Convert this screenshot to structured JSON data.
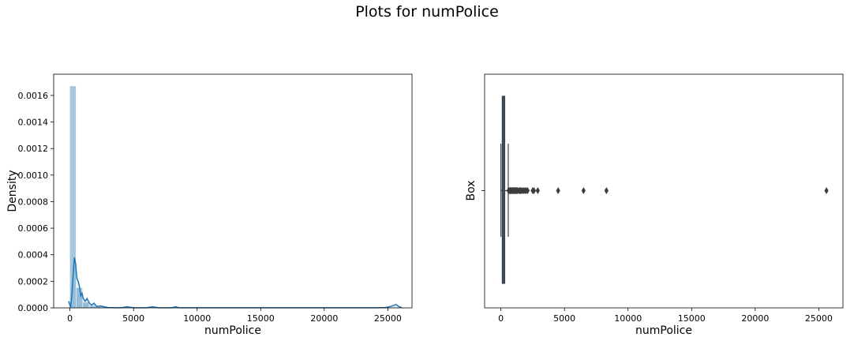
{
  "figure": {
    "suptitle": "Plots for numPolice"
  },
  "chart_data": [
    {
      "type": "histogram",
      "xlabel": "numPolice",
      "ylabel": "Density",
      "xlim": [
        -1280,
        26900
      ],
      "ylim": [
        0,
        0.00176
      ],
      "xticks": [
        0,
        5000,
        10000,
        15000,
        20000,
        25000
      ],
      "yticks": [
        0,
        0.0002,
        0.0004,
        0.0006,
        0.0008,
        0.001,
        0.0012,
        0.0014,
        0.0016
      ],
      "ytick_labels": [
        "0.0000",
        "0.0002",
        "0.0004",
        "0.0006",
        "0.0008",
        "0.0010",
        "0.0012",
        "0.0014",
        "0.0016"
      ],
      "grid": false,
      "bar_color": "#a6c6de",
      "line_color": "#1f77b4",
      "bins": [
        {
          "x0": 0,
          "x1": 512,
          "density": 0.00167
        },
        {
          "x0": 512,
          "x1": 1024,
          "density": 0.00015
        },
        {
          "x0": 1024,
          "x1": 1536,
          "density": 4e-05
        },
        {
          "x0": 1536,
          "x1": 2048,
          "density": 1.5e-05
        },
        {
          "x0": 2048,
          "x1": 2560,
          "density": 8e-06
        },
        {
          "x0": 2560,
          "x1": 3072,
          "density": 4e-06
        }
      ],
      "kde": [
        [
          -100,
          5e-05
        ],
        [
          50,
          5e-06
        ],
        [
          150,
          0.0001
        ],
        [
          250,
          0.00025
        ],
        [
          350,
          0.00038
        ],
        [
          450,
          0.00033
        ],
        [
          550,
          0.00022
        ],
        [
          650,
          0.0002
        ],
        [
          750,
          0.00016
        ],
        [
          850,
          9e-05
        ],
        [
          950,
          0.00011
        ],
        [
          1050,
          7e-05
        ],
        [
          1200,
          5e-05
        ],
        [
          1350,
          7e-05
        ],
        [
          1500,
          4e-05
        ],
        [
          1700,
          2e-05
        ],
        [
          1900,
          3.5e-05
        ],
        [
          2100,
          1e-05
        ],
        [
          2400,
          1.5e-05
        ],
        [
          2700,
          8e-06
        ],
        [
          3000,
          2e-06
        ],
        [
          4000,
          1e-06
        ],
        [
          4500,
          8e-06
        ],
        [
          5000,
          1e-06
        ],
        [
          6000,
          1e-06
        ],
        [
          6500,
          8e-06
        ],
        [
          7000,
          1e-06
        ],
        [
          8000,
          1e-06
        ],
        [
          8300,
          8e-06
        ],
        [
          8600,
          1e-06
        ],
        [
          12000,
          5e-07
        ],
        [
          20000,
          5e-07
        ],
        [
          24000,
          1e-06
        ],
        [
          24800,
          2e-06
        ],
        [
          25200,
          1e-05
        ],
        [
          25650,
          2.5e-05
        ],
        [
          25900,
          8e-06
        ],
        [
          26100,
          1e-06
        ]
      ]
    },
    {
      "type": "box",
      "xlabel": "numPolice",
      "ylabel": "Box",
      "xlim": [
        -1280,
        26900
      ],
      "xticks": [
        0,
        5000,
        10000,
        15000,
        20000,
        25000
      ],
      "grid": false,
      "box_color": "#3a74a8",
      "q1": 110,
      "median": 200,
      "q3": 300,
      "whisker_low": 0,
      "whisker_high": 580,
      "outliers": [
        600,
        650,
        700,
        750,
        800,
        850,
        900,
        950,
        1000,
        1050,
        1100,
        1150,
        1200,
        1250,
        1300,
        1400,
        1500,
        1550,
        1600,
        1700,
        1800,
        1900,
        2000,
        2100,
        2500,
        2600,
        2900,
        4500,
        6500,
        8300,
        25600
      ]
    }
  ]
}
